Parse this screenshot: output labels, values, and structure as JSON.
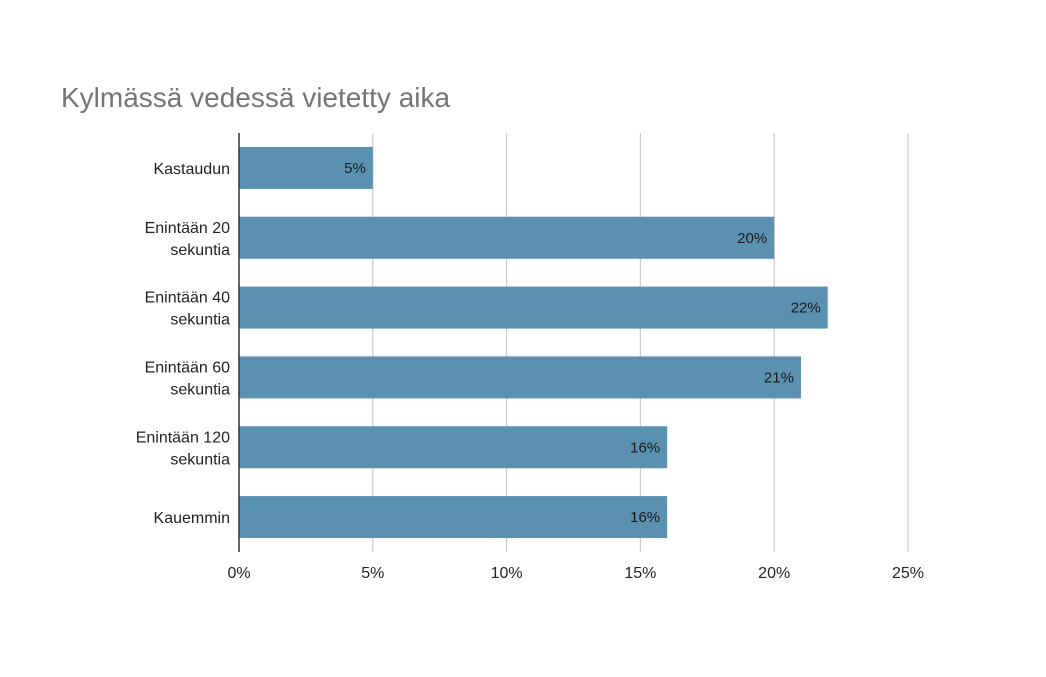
{
  "chart_data": {
    "type": "bar",
    "orientation": "horizontal",
    "title": "Kylmässä vedessä vietetty aika",
    "categories": [
      [
        "Kastaudun"
      ],
      [
        "Enintään 20",
        "sekuntia"
      ],
      [
        "Enintään 40",
        "sekuntia"
      ],
      [
        "Enintään 60",
        "sekuntia"
      ],
      [
        "Enintään 120",
        "sekuntia"
      ],
      [
        "Kauemmin"
      ]
    ],
    "values": [
      5,
      20,
      22,
      21,
      16,
      16
    ],
    "data_labels": [
      "5%",
      "20%",
      "22%",
      "21%",
      "16%",
      "16%"
    ],
    "xlim": [
      0,
      25
    ],
    "xticks": [
      0,
      5,
      10,
      15,
      20,
      25
    ],
    "xtick_labels": [
      "0%",
      "5%",
      "10%",
      "15%",
      "20%",
      "25%"
    ],
    "xlabel": "",
    "ylabel": "",
    "grid": true,
    "legend": "none",
    "colors": {
      "bar": "#5b91b0",
      "grid": "#cccccc",
      "axis": "#333333",
      "title": "#757575"
    }
  }
}
